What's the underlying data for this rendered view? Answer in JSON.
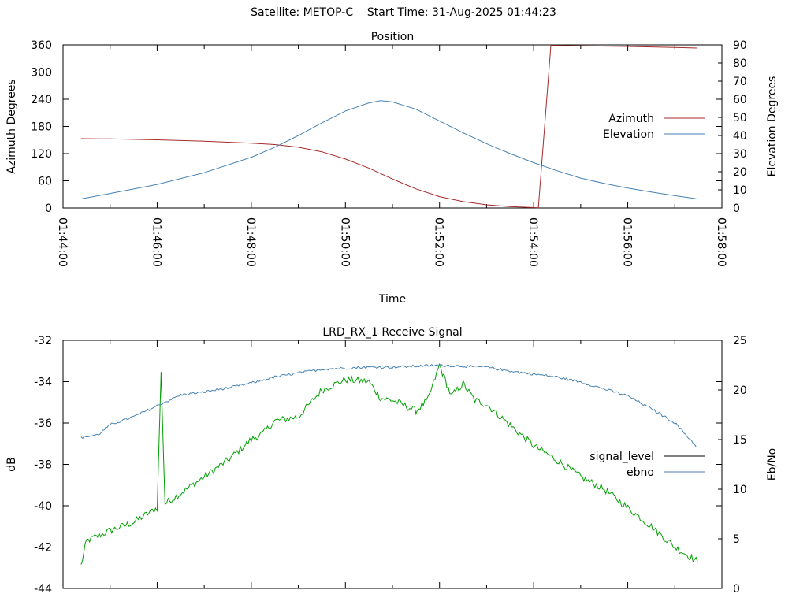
{
  "page_title": "Satellite: METOP-C    Start Time: 31-Aug-2025 01:44:23",
  "chart_data": [
    {
      "type": "line",
      "title": "Position",
      "xlabel": "Time",
      "ylabel_left": "Azimuth Degrees",
      "ylabel_right": "Elevation Degrees",
      "x_ticks": [
        "01:44:00",
        "01:46:00",
        "01:48:00",
        "01:50:00",
        "01:52:00",
        "01:54:00",
        "01:56:00",
        "01:58:00"
      ],
      "y_left_ticks": [
        "0",
        "60",
        "120",
        "180",
        "240",
        "300",
        "360"
      ],
      "y_right_ticks": [
        "0",
        "10",
        "20",
        "30",
        "40",
        "50",
        "60",
        "70",
        "80",
        "90"
      ],
      "xlim": [
        "01:44:00",
        "01:58:00"
      ],
      "ylim_left": [
        0,
        360
      ],
      "ylim_right": [
        0,
        90
      ],
      "legend": "right",
      "series": [
        {
          "name": "Azimuth",
          "axis": "left",
          "color": "#a52a2a",
          "points": [
            [
              "01:44:23",
              153
            ],
            [
              "01:45:00",
              152.5
            ],
            [
              "01:46:00",
              150.5
            ],
            [
              "01:47:00",
              147.5
            ],
            [
              "01:48:00",
              143
            ],
            [
              "01:48:30",
              140
            ],
            [
              "01:49:00",
              134
            ],
            [
              "01:49:30",
              124
            ],
            [
              "01:50:00",
              108
            ],
            [
              "01:50:30",
              88
            ],
            [
              "01:51:00",
              64
            ],
            [
              "01:51:30",
              42
            ],
            [
              "01:52:00",
              25
            ],
            [
              "01:52:30",
              14
            ],
            [
              "01:53:00",
              7
            ],
            [
              "01:53:30",
              3
            ],
            [
              "01:54:06",
              0.5
            ],
            [
              "01:54:22",
              359
            ],
            [
              "01:55:00",
              358
            ],
            [
              "01:56:00",
              356.5
            ],
            [
              "01:57:00",
              354.5
            ],
            [
              "01:57:29",
              353
            ]
          ]
        },
        {
          "name": "Elevation",
          "axis": "right",
          "color": "#4682b4",
          "points": [
            [
              "01:44:23",
              5
            ],
            [
              "01:45:00",
              8
            ],
            [
              "01:46:00",
              13
            ],
            [
              "01:47:00",
              19.5
            ],
            [
              "01:48:00",
              28
            ],
            [
              "01:48:30",
              33.5
            ],
            [
              "01:49:00",
              40
            ],
            [
              "01:49:30",
              47
            ],
            [
              "01:50:00",
              53.5
            ],
            [
              "01:50:30",
              58
            ],
            [
              "01:50:45",
              59.2
            ],
            [
              "01:51:00",
              58.5
            ],
            [
              "01:51:30",
              54.5
            ],
            [
              "01:52:00",
              48
            ],
            [
              "01:52:30",
              41.5
            ],
            [
              "01:53:00",
              35.5
            ],
            [
              "01:53:30",
              30
            ],
            [
              "01:54:00",
              25
            ],
            [
              "01:54:30",
              20.5
            ],
            [
              "01:55:00",
              16.5
            ],
            [
              "01:55:30",
              13.5
            ],
            [
              "01:56:00",
              11
            ],
            [
              "01:56:30",
              8.8
            ],
            [
              "01:57:00",
              6.8
            ],
            [
              "01:57:29",
              5
            ]
          ]
        }
      ]
    },
    {
      "type": "line",
      "title": "LRD_RX_1 Receive Signal",
      "ylabel_left": "dB",
      "ylabel_right": "Eb/No",
      "y_left_ticks": [
        "-44",
        "-42",
        "-40",
        "-38",
        "-36",
        "-34",
        "-32"
      ],
      "y_right_ticks": [
        "0",
        "5",
        "10",
        "15",
        "20",
        "25"
      ],
      "xlim": [
        "01:44:00",
        "01:58:00"
      ],
      "ylim_left": [
        -44,
        -32
      ],
      "ylim_right": [
        0,
        25
      ],
      "legend": "right",
      "series": [
        {
          "name": "signal_level",
          "axis": "left",
          "color": "#00a000",
          "legend_color": "#000000",
          "points": [
            [
              "01:44:23",
              -42.9
            ],
            [
              "01:44:30",
              -41.7
            ],
            [
              "01:45:00",
              -41.2
            ],
            [
              "01:45:30",
              -40.8
            ],
            [
              "01:46:00",
              -40.1
            ],
            [
              "01:46:05",
              -33.6
            ],
            [
              "01:46:10",
              -39.9
            ],
            [
              "01:46:30",
              -39.4
            ],
            [
              "01:47:00",
              -38.6
            ],
            [
              "01:47:30",
              -37.8
            ],
            [
              "01:48:00",
              -36.8
            ],
            [
              "01:48:15",
              -36.5
            ],
            [
              "01:48:30",
              -35.9
            ],
            [
              "01:49:00",
              -35.7
            ],
            [
              "01:49:30",
              -34.4
            ],
            [
              "01:50:00",
              -33.9
            ],
            [
              "01:50:30",
              -34.0
            ],
            [
              "01:50:45",
              -34.8
            ],
            [
              "01:51:00",
              -34.9
            ],
            [
              "01:51:30",
              -35.4
            ],
            [
              "01:51:45",
              -34.9
            ],
            [
              "01:52:00",
              -33.2
            ],
            [
              "01:52:15",
              -34.7
            ],
            [
              "01:52:30",
              -34.1
            ],
            [
              "01:52:45",
              -34.9
            ],
            [
              "01:53:00",
              -35.1
            ],
            [
              "01:53:30",
              -36.1
            ],
            [
              "01:54:00",
              -37.1
            ],
            [
              "01:54:30",
              -37.8
            ],
            [
              "01:55:00",
              -38.6
            ],
            [
              "01:55:30",
              -39.2
            ],
            [
              "01:56:00",
              -40.1
            ],
            [
              "01:56:30",
              -41.0
            ],
            [
              "01:57:00",
              -42.0
            ],
            [
              "01:57:29",
              -42.7
            ]
          ]
        },
        {
          "name": "ebno",
          "axis": "right",
          "color": "#4682b4",
          "points": [
            [
              "01:44:23",
              15.2
            ],
            [
              "01:44:45",
              15.5
            ],
            [
              "01:45:00",
              16.5
            ],
            [
              "01:45:30",
              17.3
            ],
            [
              "01:46:00",
              18.4
            ],
            [
              "01:46:30",
              19.5
            ],
            [
              "01:47:00",
              19.8
            ],
            [
              "01:47:30",
              20.2
            ],
            [
              "01:48:00",
              20.7
            ],
            [
              "01:48:30",
              21.3
            ],
            [
              "01:49:00",
              21.7
            ],
            [
              "01:49:30",
              22.1
            ],
            [
              "01:50:00",
              22.2
            ],
            [
              "01:50:30",
              22.3
            ],
            [
              "01:51:00",
              22.3
            ],
            [
              "01:51:30",
              22.4
            ],
            [
              "01:52:00",
              22.5
            ],
            [
              "01:52:30",
              22.4
            ],
            [
              "01:53:00",
              22.3
            ],
            [
              "01:53:30",
              21.9
            ],
            [
              "01:54:00",
              21.6
            ],
            [
              "01:54:30",
              21.3
            ],
            [
              "01:55:00",
              20.8
            ],
            [
              "01:55:30",
              20.1
            ],
            [
              "01:56:00",
              19.4
            ],
            [
              "01:56:30",
              18.1
            ],
            [
              "01:57:00",
              16.7
            ],
            [
              "01:57:29",
              14.2
            ]
          ]
        }
      ]
    }
  ]
}
